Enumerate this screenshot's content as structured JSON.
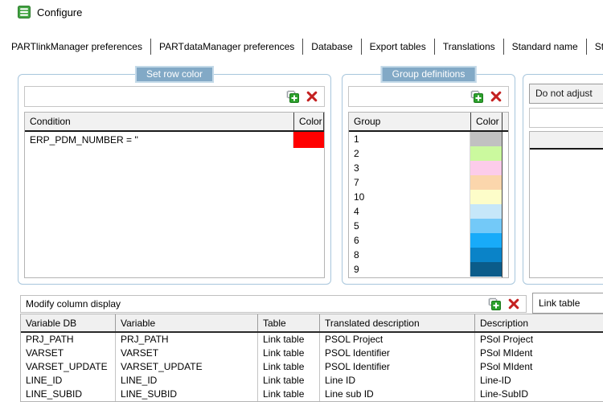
{
  "window": {
    "title": "Configure"
  },
  "tabs": [
    "PARTlinkManager preferences",
    "PARTdataManager preferences",
    "Database",
    "Export tables",
    "Translations",
    "Standard name",
    "Standard name (shor"
  ],
  "icons": {
    "app": "database-icon",
    "add": "add-item-icon",
    "delete": "delete-icon"
  },
  "colors": {
    "badge_bg": "#82a9c6",
    "badge_border": "#c3d9e8",
    "groupbox_border": "#a8c6dc",
    "condition_red": "#ff0000"
  },
  "set_row_color": {
    "title": "Set row color",
    "columns": [
      "Condition",
      "Color"
    ],
    "rows": [
      {
        "condition": "ERP_PDM_NUMBER = ''",
        "color": "#ff0000"
      }
    ]
  },
  "group_definitions": {
    "title": "Group definitions",
    "columns": [
      "Group",
      "Color"
    ],
    "rows": [
      {
        "group": "1",
        "color": "#c1c1c1"
      },
      {
        "group": "2",
        "color": "#cbf99e"
      },
      {
        "group": "3",
        "color": "#fcccea"
      },
      {
        "group": "7",
        "color": "#fbd6ac"
      },
      {
        "group": "10",
        "color": "#fdfdc9"
      },
      {
        "group": "4",
        "color": "#c6e7f9"
      },
      {
        "group": "5",
        "color": "#73c9f8"
      },
      {
        "group": "6",
        "color": "#18abf9"
      },
      {
        "group": "8",
        "color": "#0a83c8"
      },
      {
        "group": "9",
        "color": "#0b5c8a"
      }
    ]
  },
  "right_panel": {
    "dropdown_value": "Do not adjust"
  },
  "modify_columns": {
    "title": "Modify column display",
    "table_selector": "Link table",
    "columns": [
      "Variable DB",
      "Variable",
      "Table",
      "Translated description",
      "Description"
    ],
    "rows": [
      [
        "PRJ_PATH",
        "PRJ_PATH",
        "Link table",
        "PSOL Project",
        "PSol Project"
      ],
      [
        "VARSET",
        "VARSET",
        "Link table",
        "PSOL Identifier",
        "PSol MIdent"
      ],
      [
        "VARSET_UPDATE",
        "VARSET_UPDATE",
        "Link table",
        "PSOL Identifier",
        "PSol MIdent"
      ],
      [
        "LINE_ID",
        "LINE_ID",
        "Link table",
        "Line ID",
        "Line-ID"
      ],
      [
        "LINE_SUBID",
        "LINE_SUBID",
        "Link table",
        "Line sub ID",
        "Line-SubID"
      ]
    ]
  }
}
